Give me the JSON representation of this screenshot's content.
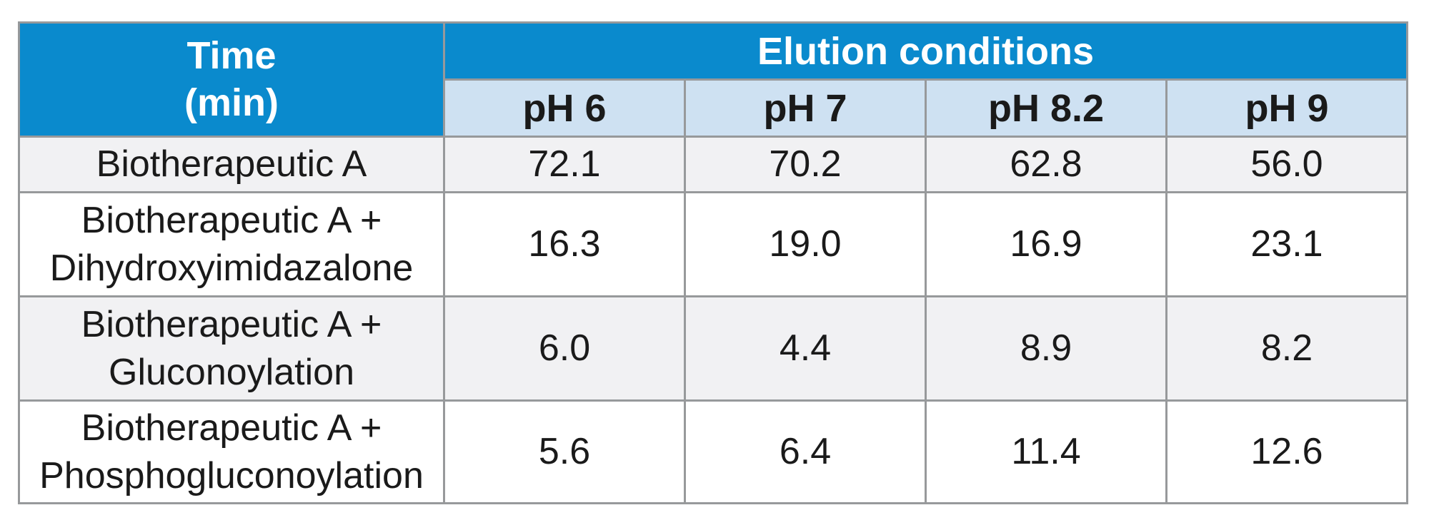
{
  "colors": {
    "header_blue": "#0a8acd",
    "subheader_light_blue": "#cee1f2",
    "row_alt_gray": "#f1f1f3",
    "row_white": "#ffffff",
    "border_gray": "#97999b",
    "header_text": "#ffffff",
    "body_text": "#1a1a1a",
    "blue_header_divider": "#f0fcff"
  },
  "table": {
    "corner": {
      "line1": "Time",
      "line2": "(min)"
    },
    "group_header": "Elution conditions",
    "columns": [
      "pH 6",
      "pH 7",
      "pH 8.2",
      "pH 9"
    ],
    "rows": [
      {
        "label": "Biotherapeutic A",
        "values": [
          "72.1",
          "70.2",
          "62.8",
          "56.0"
        ]
      },
      {
        "label": "Biotherapeutic A + Dihydroxyimidazalone",
        "values": [
          "16.3",
          "19.0",
          "16.9",
          "23.1"
        ]
      },
      {
        "label": "Biotherapeutic A + Gluconoylation",
        "values": [
          "6.0",
          "4.4",
          "8.9",
          "8.2"
        ]
      },
      {
        "label": "Biotherapeutic A + Phosphogluconoylation",
        "values": [
          "5.6",
          "6.4",
          "11.4",
          "12.6"
        ]
      }
    ]
  },
  "chart_data": {
    "type": "table",
    "title": "",
    "row_header": "Time (min)",
    "column_group_header": "Elution conditions",
    "columns": [
      "pH 6",
      "pH 7",
      "pH 8.2",
      "pH 9"
    ],
    "rows": [
      {
        "label": "Biotherapeutic A",
        "values": [
          72.1,
          70.2,
          62.8,
          56.0
        ]
      },
      {
        "label": "Biotherapeutic A + Dihydroxyimidazalone",
        "values": [
          16.3,
          19.0,
          16.9,
          23.1
        ]
      },
      {
        "label": "Biotherapeutic A + Gluconoylation",
        "values": [
          6.0,
          4.4,
          8.9,
          8.2
        ]
      },
      {
        "label": "Biotherapeutic A + Phosphogluconoylation",
        "values": [
          5.6,
          6.4,
          11.4,
          12.6
        ]
      }
    ],
    "units": "minutes",
    "notes_layout": "first column header spans two rows; 'Elution conditions' spans the four pH columns; rows alternate gray/white starting gray"
  }
}
